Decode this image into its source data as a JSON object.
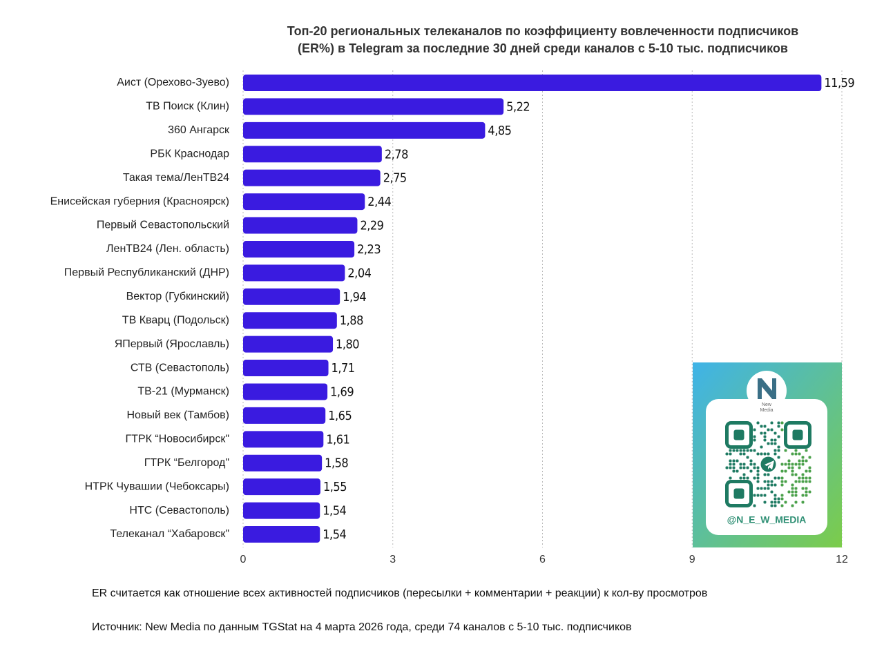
{
  "chart_data": {
    "type": "bar",
    "orientation": "horizontal",
    "title": [
      "Топ-20 региональных телеканалов по коэффициенту вовлеченности подписчиков",
      "(ER%) в Telegram за последние 30 дней среди каналов с 5-10 тыс. подписчиков"
    ],
    "categories": [
      "Аист (Орехово-Зуево)",
      "ТВ Поиск (Клин)",
      "360 Ангарск",
      "РБК Краснодар",
      "Такая тема/ЛенТВ24",
      "Енисейская губерния (Красноярск)",
      "Первый Севастопольский",
      "ЛенТВ24 (Лен. область)",
      "Первый Республиканский (ДНР)",
      "Вектор (Губкинский)",
      "ТВ Кварц (Подольск)",
      "ЯПервый (Ярославль)",
      "СТВ (Севастополь)",
      "ТВ-21 (Мурманск)",
      "Новый век (Тамбов)",
      "ГТРК “Новосибирск\"",
      "ГТРК “Белгород\"",
      "НТРК Чувашии (Чебоксары)",
      "НТС (Севастополь)",
      "Телеканал “Хабаровск\""
    ],
    "values": [
      11.59,
      5.22,
      4.85,
      2.78,
      2.75,
      2.44,
      2.29,
      2.23,
      2.04,
      1.94,
      1.88,
      1.8,
      1.71,
      1.69,
      1.65,
      1.61,
      1.58,
      1.55,
      1.54,
      1.54
    ],
    "value_labels": [
      "11,59",
      "5,22",
      "4,85",
      "2,78",
      "2,75",
      "2,44",
      "2,29",
      "2,23",
      "2,04",
      "1,94",
      "1,88",
      "1,80",
      "1,71",
      "1,69",
      "1,65",
      "1,61",
      "1,58",
      "1,55",
      "1,54",
      "1,54"
    ],
    "color": "#3a1be0",
    "xlim": [
      0,
      12
    ],
    "xticks": [
      0,
      3,
      6,
      9,
      12
    ],
    "grid": true,
    "notes": [
      "ER считается как отношение всех активностей подписчиков (пересылки + комментарии + реакции) к кол-ву просмотров",
      "Источник: New Media по данным TGStat на 4 марта 2026 года, среди 74 каналов с 5-10 тыс. подписчиков"
    ],
    "logo_text": [
      "New",
      "Media"
    ],
    "qr_caption": "@N_E_W_MEDIA"
  }
}
